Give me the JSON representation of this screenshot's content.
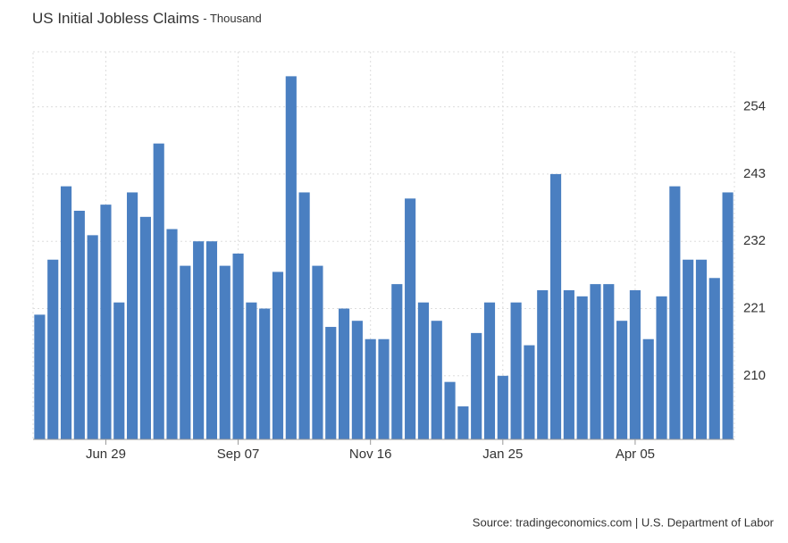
{
  "chart_data": {
    "type": "bar",
    "title": "US Initial Jobless Claims",
    "subtitle": "- Thousand",
    "categories": [
      null,
      null,
      null,
      null,
      null,
      "Jun 29",
      null,
      null,
      null,
      null,
      null,
      null,
      null,
      null,
      null,
      "Sep 07",
      null,
      null,
      null,
      null,
      null,
      null,
      null,
      null,
      null,
      "Nov 16",
      null,
      null,
      null,
      null,
      null,
      null,
      null,
      null,
      null,
      "Jan 25",
      null,
      null,
      null,
      null,
      null,
      null,
      null,
      null,
      null,
      "Apr 05",
      null,
      null,
      null,
      null,
      null,
      null,
      null
    ],
    "values": [
      220,
      229,
      241,
      237,
      233,
      238,
      222,
      240,
      236,
      248,
      234,
      228,
      232,
      232,
      228,
      230,
      222,
      221,
      227,
      259,
      240,
      228,
      218,
      221,
      219,
      216,
      216,
      225,
      239,
      222,
      219,
      209,
      205,
      217,
      222,
      210,
      222,
      215,
      224,
      243,
      224,
      223,
      225,
      225,
      219,
      224,
      216,
      223,
      241,
      229,
      229,
      226,
      240
    ],
    "color": "#4a7fc1",
    "ylim": [
      199.6,
      263
    ],
    "yticks": [
      210,
      221,
      232,
      243,
      254
    ],
    "grid": true,
    "source": "Source: tradingeconomics.com | U.S. Department of Labor"
  }
}
